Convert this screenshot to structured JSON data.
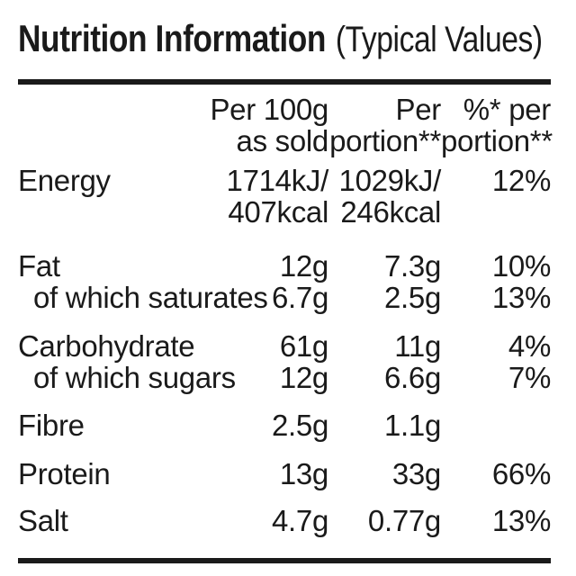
{
  "header": {
    "title": "Nutrition Information",
    "subtitle": "(Typical Values)"
  },
  "table": {
    "columns": {
      "per100g": {
        "line1": "Per 100g",
        "line2": "as sold"
      },
      "portion": {
        "line1": "Per",
        "line2": "portion**"
      },
      "percent": {
        "line1": "%* per",
        "line2": "portion**"
      }
    },
    "rows": [
      {
        "label": "Energy",
        "per100g_l1": "1714kJ/",
        "per100g_l2": "407kcal",
        "portion_l1": "1029kJ/",
        "portion_l2": "246kcal",
        "percent": "12%"
      },
      {
        "label": "Fat",
        "per100g": "12g",
        "portion": "7.3g",
        "percent": "10%"
      },
      {
        "label": "of which saturates",
        "per100g": "6.7g",
        "portion": "2.5g",
        "percent": "13%"
      },
      {
        "label": "Carbohydrate",
        "per100g": "61g",
        "portion": "11g",
        "percent": "4%"
      },
      {
        "label": "of which sugars",
        "per100g": "12g",
        "portion": "6.6g",
        "percent": "7%"
      },
      {
        "label": "Fibre",
        "per100g": "2.5g",
        "portion": "1.1g",
        "percent": ""
      },
      {
        "label": "Protein",
        "per100g": "13g",
        "portion": "33g",
        "percent": "66%"
      },
      {
        "label": "Salt",
        "per100g": "4.7g",
        "portion": "0.77g",
        "percent": "13%"
      }
    ]
  },
  "colors": {
    "text": "#1a1a1a",
    "background": "#ffffff",
    "rule": "#1a1a1a"
  }
}
